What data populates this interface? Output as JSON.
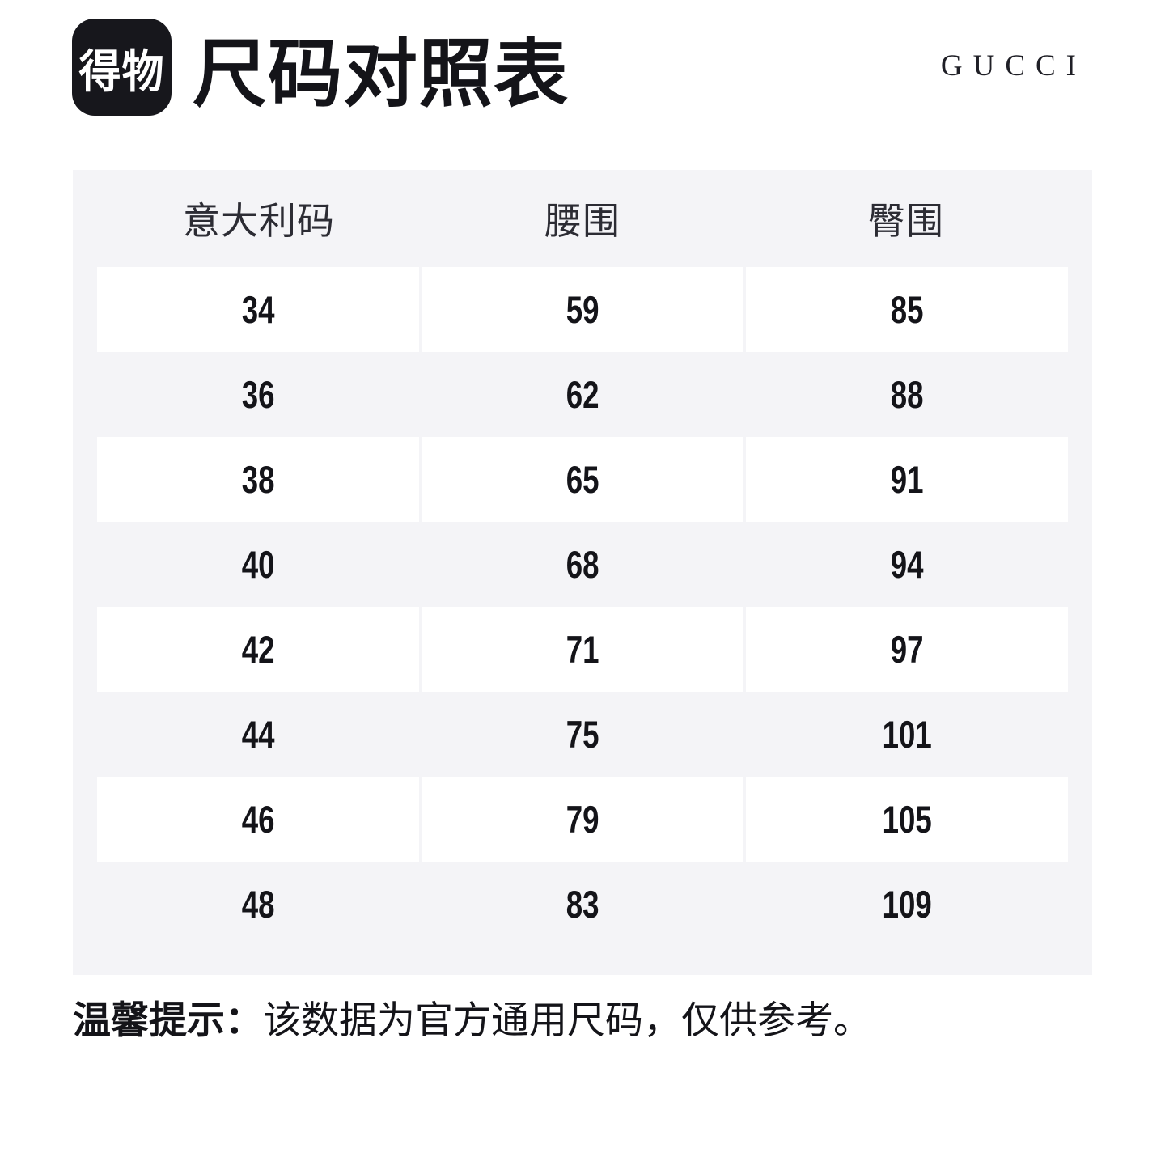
{
  "header": {
    "logo_text": "得物",
    "title": "尺码对照表",
    "brand": "GUCCI"
  },
  "chart_data": {
    "type": "table",
    "title": "尺码对照表",
    "columns": [
      "意大利码",
      "腰围",
      "臀围"
    ],
    "rows": [
      [
        34,
        59,
        85
      ],
      [
        36,
        62,
        88
      ],
      [
        38,
        65,
        91
      ],
      [
        40,
        68,
        94
      ],
      [
        42,
        71,
        97
      ],
      [
        44,
        75,
        101
      ],
      [
        46,
        79,
        105
      ],
      [
        48,
        83,
        109
      ]
    ]
  },
  "note": {
    "label": "温馨提示：",
    "text": "该数据为官方通用尺码，仅供参考。"
  },
  "colors": {
    "page_bg": "#ffffff",
    "panel_bg": "#f4f4f7",
    "row_white": "#ffffff",
    "ink": "#141419",
    "logo_bg": "#17171c"
  }
}
